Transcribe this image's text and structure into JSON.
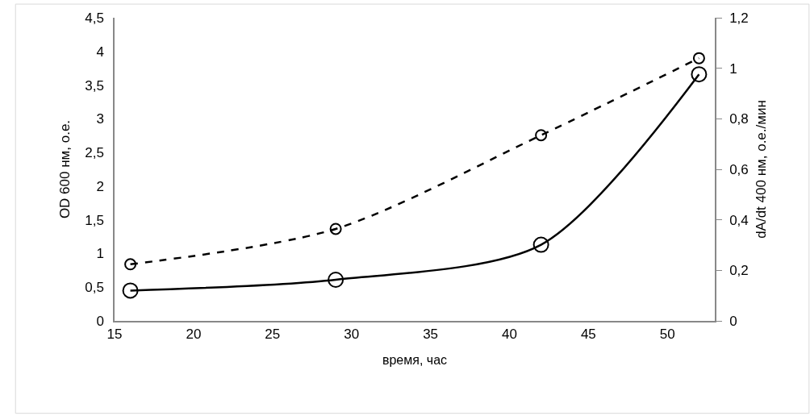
{
  "chart_data": {
    "type": "line",
    "xlabel": "время, час",
    "ylabel": "OD 600 нм, о.е.",
    "y2label": "dA/dt 400 нм, о.е./мин",
    "x": [
      16,
      29,
      42,
      52
    ],
    "series": [
      {
        "color": "#000000",
        "values": [
          0.45,
          0.61,
          1.13,
          3.66
        ],
        "line_style": "solid",
        "marker": "circle"
      },
      {
        "color": "#000000",
        "values": [
          0.224,
          0.364,
          0.735,
          1.04
        ],
        "line_style": "dashed",
        "marker": "circle",
        "axis": "y2"
      }
    ],
    "xlim": [
      15,
      53
    ],
    "xticks": [
      15,
      20,
      25,
      30,
      35,
      40,
      45,
      50
    ],
    "ylim": [
      0,
      4.5
    ],
    "yticks": [
      0,
      {
        "value": 0.5,
        "label": "0,5"
      },
      1,
      {
        "value": 1.5,
        "label": "1,5"
      },
      2,
      {
        "value": 2.5,
        "label": "2,5"
      },
      3,
      {
        "value": 3.5,
        "label": "3,5"
      },
      4,
      {
        "value": 4.5,
        "label": "4,5"
      }
    ],
    "y2lim": [
      0,
      1.2
    ],
    "y2ticks": [
      0,
      {
        "value": 0.2,
        "label": "0,2"
      },
      {
        "value": 0.4,
        "label": "0,4"
      },
      {
        "value": 0.6,
        "label": "0,6"
      },
      {
        "value": 0.8,
        "label": "0,8"
      },
      1,
      {
        "value": 1.2,
        "label": "1,2"
      }
    ],
    "grid": false
  }
}
